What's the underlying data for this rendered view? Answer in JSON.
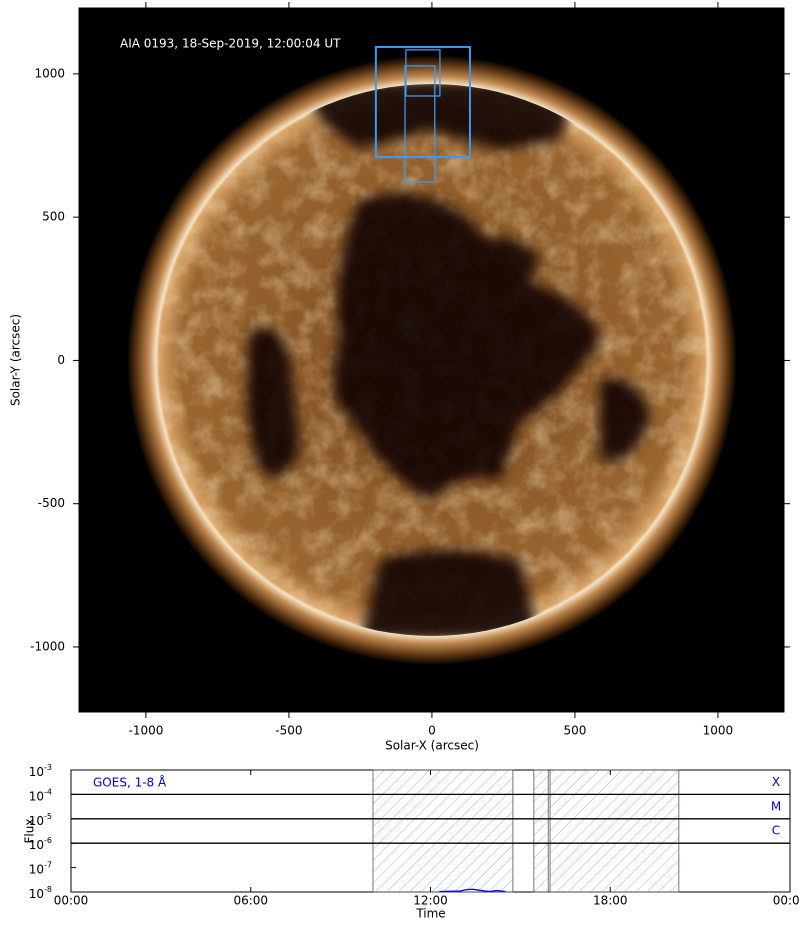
{
  "chart_data": [
    {
      "type": "image",
      "title": "AIA 0193, 18-Sep-2019, 12:00:04 UT",
      "xlabel": "Solar-X (arcsec)",
      "ylabel": "Solar-Y (arcsec)",
      "xlim": [
        -1234,
        1231
      ],
      "ylim": [
        -1227,
        1230
      ],
      "xticks": [
        -1000,
        -500,
        0,
        500,
        1000
      ],
      "yticks": [
        -1000,
        -500,
        0,
        500,
        1000
      ],
      "boxes": [
        {
          "x": [
            -196,
            133
          ],
          "y": [
            710,
            1094
          ],
          "color": "#3a9af5"
        },
        {
          "x": [
            -91,
            28
          ],
          "y": [
            923,
            1084
          ],
          "color": "#3a9af5"
        },
        {
          "x": [
            -94,
            10
          ],
          "y": [
            623,
            1028
          ],
          "color": "#3a9af5"
        }
      ]
    },
    {
      "type": "line",
      "xlabel": "Time",
      "ylabel": "Flux",
      "log_y": true,
      "xlim": [
        0,
        24
      ],
      "ylim": [
        1e-08,
        0.001
      ],
      "xticks": [
        {
          "value": 0,
          "label": "00:00"
        },
        {
          "value": 6,
          "label": "06:00"
        },
        {
          "value": 12,
          "label": "12:00"
        },
        {
          "value": 18,
          "label": "18:00"
        },
        {
          "value": 24,
          "label": "00:00"
        }
      ],
      "yticks": [
        {
          "value": 1e-08,
          "label": "10",
          "exponent": "-8"
        },
        {
          "value": 1e-07,
          "label": "10",
          "exponent": "-7"
        },
        {
          "value": 1e-06,
          "label": "10",
          "exponent": "-6"
        },
        {
          "value": 1e-05,
          "label": "10",
          "exponent": "-5"
        },
        {
          "value": 0.0001,
          "label": "10",
          "exponent": "-4"
        },
        {
          "value": 0.001,
          "label": "10",
          "exponent": "-3"
        }
      ],
      "flare_levels": [
        {
          "value": 0.0001,
          "label": "X"
        },
        {
          "value": 1e-05,
          "label": "M"
        },
        {
          "value": 1e-06,
          "label": "C"
        }
      ],
      "shaded_intervals": [
        [
          10.08,
          14.75
        ],
        [
          15.45,
          15.93
        ],
        [
          15.99,
          20.29
        ]
      ],
      "legend": "upper left",
      "series": [
        {
          "name": "GOES, 1-8 Å",
          "color": "#0000ff",
          "x": [
            12.3,
            13.0,
            13.2,
            13.4,
            13.6,
            13.8,
            14.0,
            14.2,
            14.5
          ],
          "values": [
            1.05e-08,
            1.1e-08,
            1.25e-08,
            1.3e-08,
            1.2e-08,
            1.1e-08,
            1.05e-08,
            1.15e-08,
            1.05e-08
          ]
        }
      ]
    }
  ]
}
